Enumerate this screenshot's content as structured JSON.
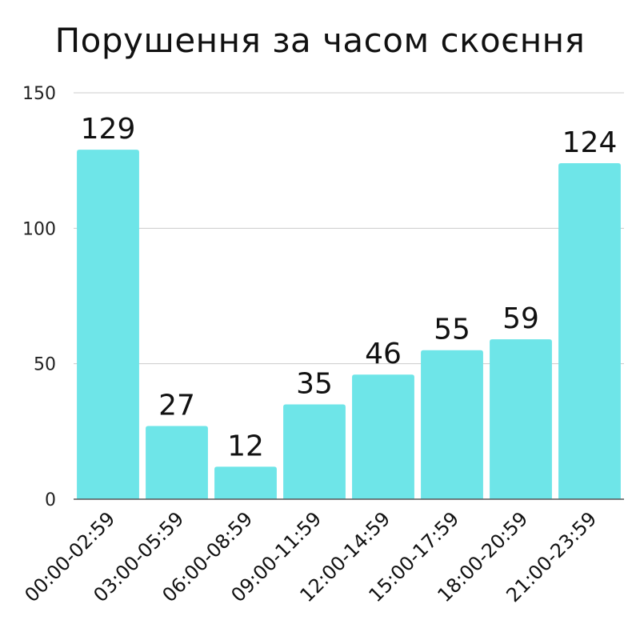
{
  "chart_data": {
    "type": "bar",
    "title": "Порушення за часом скоєння",
    "xlabel": "",
    "ylabel": "",
    "categories": [
      "00:00-02:59",
      "03:00-05:59",
      "06:00-08:59",
      "09:00-11:59",
      "12:00-14:59",
      "15:00-17:59",
      "18:00-20:59",
      "21:00-23:59"
    ],
    "values": [
      129,
      27,
      12,
      35,
      46,
      55,
      59,
      124
    ],
    "data_labels": [
      "129",
      "27",
      "12",
      "35",
      "46",
      "55",
      "59",
      "124"
    ],
    "ylim": [
      0,
      150
    ],
    "yticks": [
      0,
      50,
      100,
      150
    ],
    "ytick_labels": [
      "0",
      "50",
      "100",
      "150"
    ],
    "grid": true,
    "legend": "none",
    "colors": {
      "bar": "#6ee5e8",
      "grid": "#cccccc",
      "axis": "#555555"
    }
  }
}
